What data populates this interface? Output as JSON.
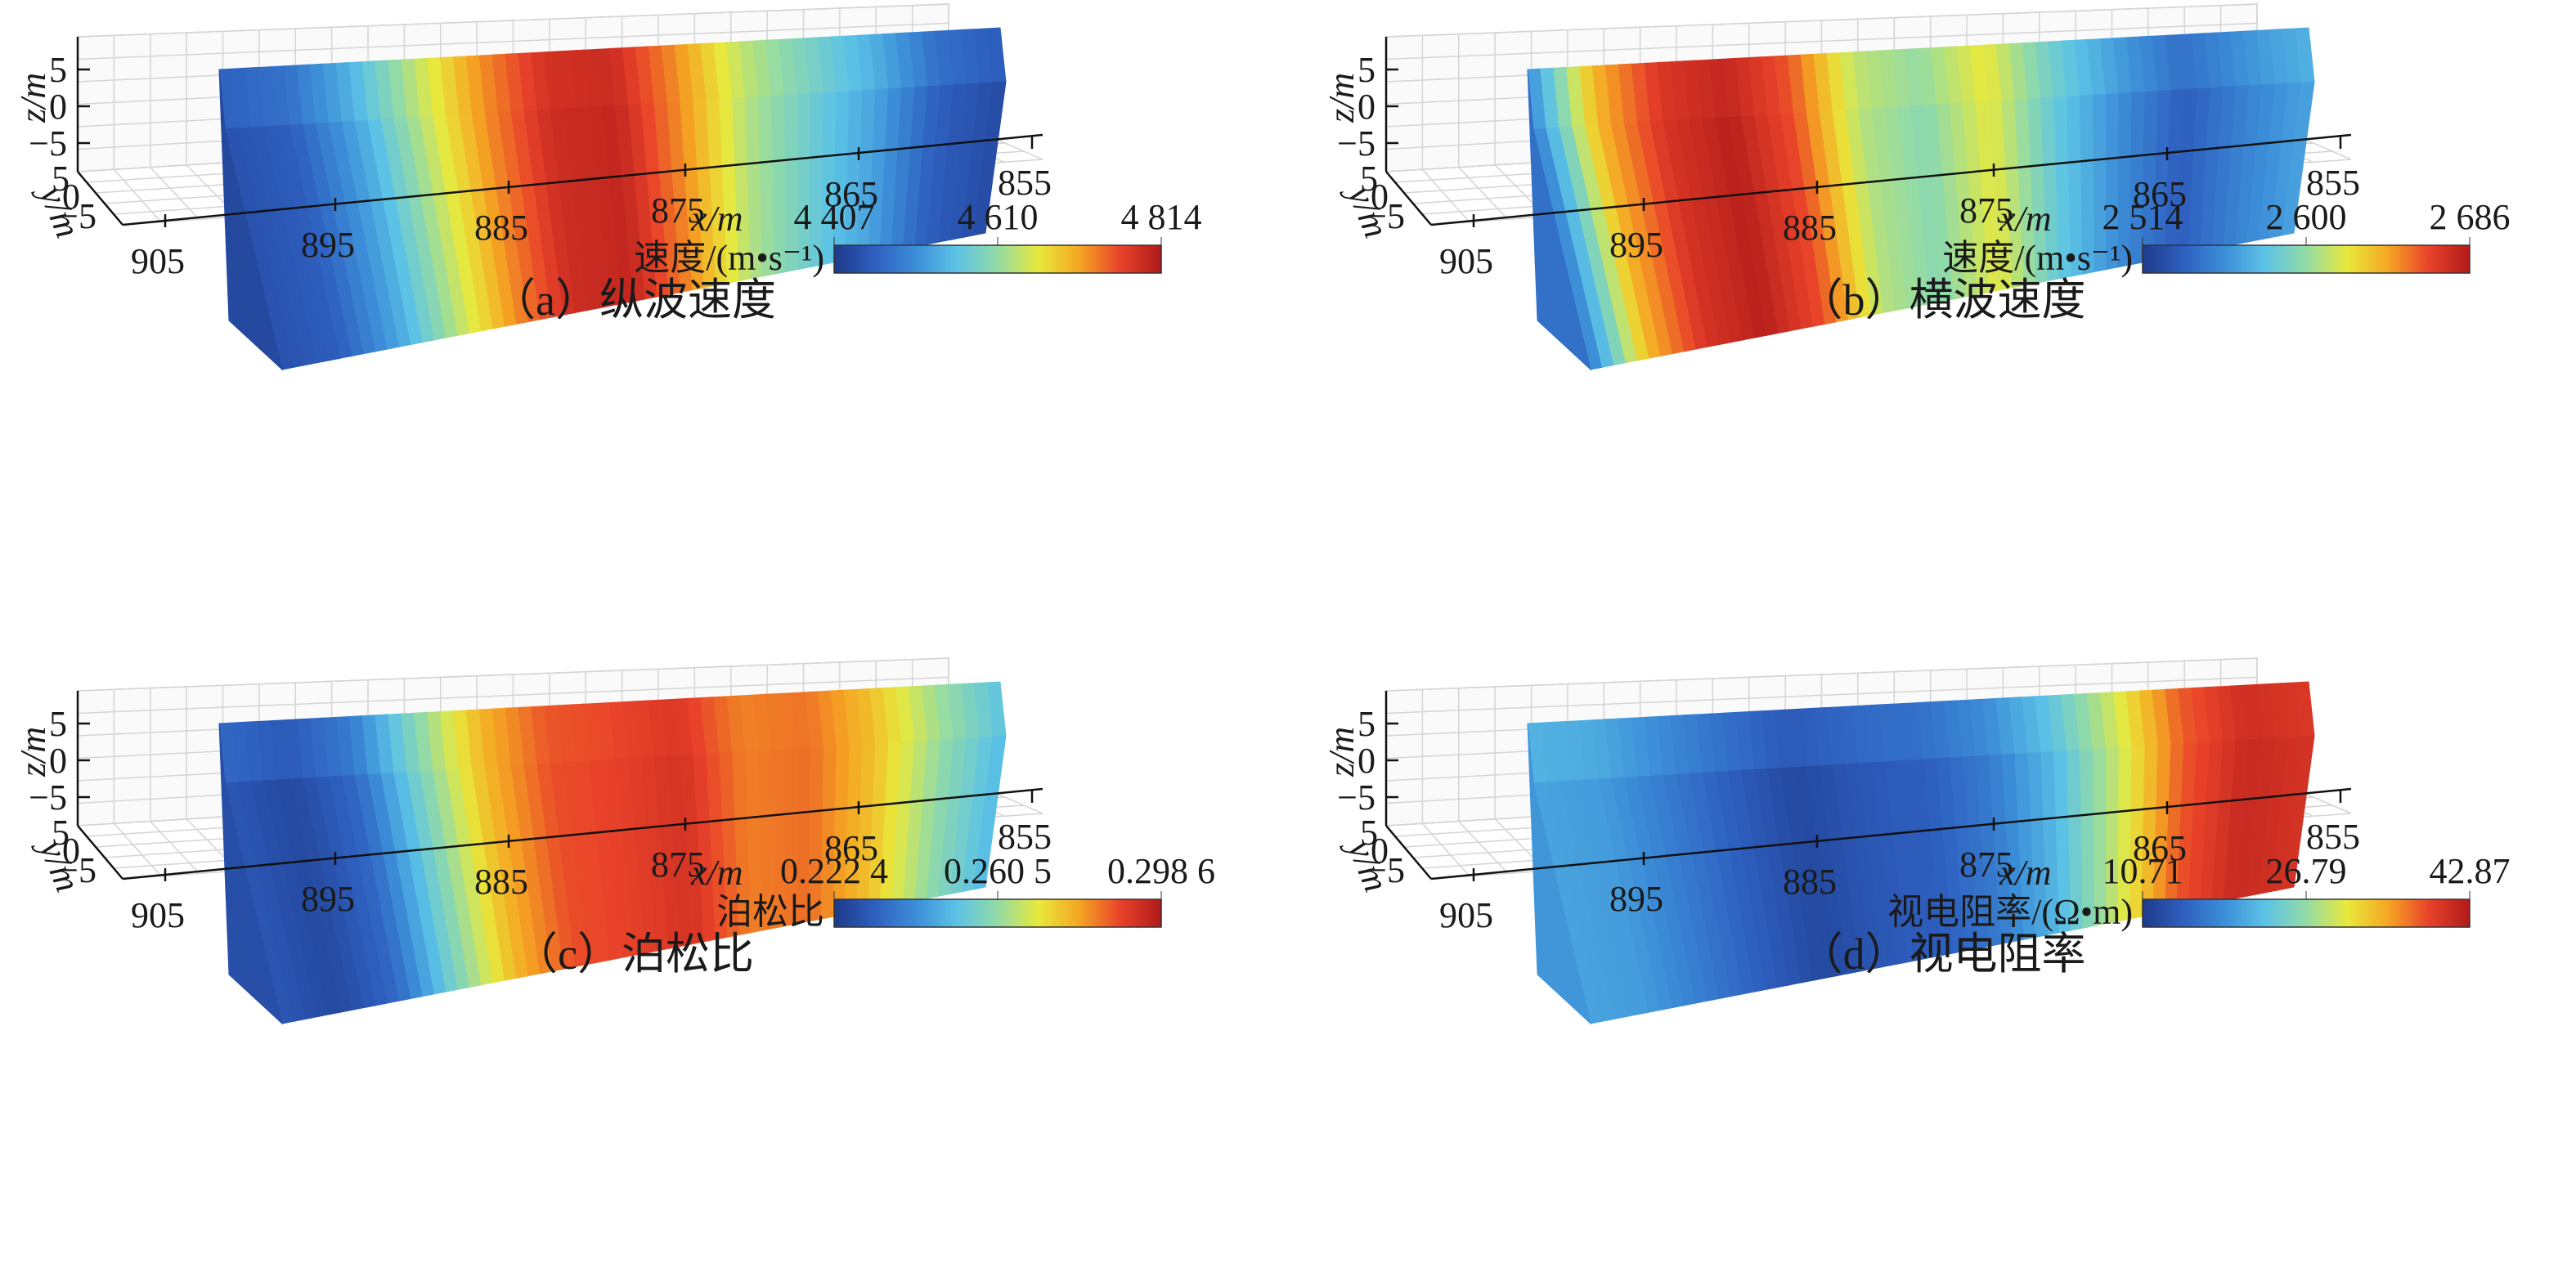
{
  "colormap": [
    "#1e3a8a",
    "#2e5fbf",
    "#3c8ed8",
    "#5cc3e6",
    "#93dba6",
    "#e8e93c",
    "#f5a623",
    "#e8422a",
    "#b01a1a"
  ],
  "chart_data": [
    {
      "type": "heatmap",
      "caption": "（a）纵波速度",
      "x_label": "x/m",
      "y_label": "y/m",
      "z_label": "z/m",
      "x_ticks": [
        "905",
        "895",
        "885",
        "875",
        "865",
        "855"
      ],
      "y_ticks": [
        "5",
        "0",
        "−5"
      ],
      "z_ticks": [
        "5",
        "0",
        "−5"
      ],
      "x_range": [
        905,
        855
      ],
      "y_range": [
        -5,
        5
      ],
      "z_range": [
        -7,
        7
      ],
      "colorbar": {
        "label": "速度/(m•s⁻¹)",
        "ticks": [
          "4 407",
          "4 610",
          "4 814"
        ],
        "min": 4407,
        "max": 4814
      },
      "front_face_profile": [
        0.08,
        0.12,
        0.3,
        0.55,
        0.78,
        0.94,
        0.96,
        0.78,
        0.55,
        0.42,
        0.3,
        0.12,
        0.06
      ]
    },
    {
      "type": "heatmap",
      "caption": "（b）横波速度",
      "x_label": "x/m",
      "y_label": "y/m",
      "z_label": "z/m",
      "x_ticks": [
        "905",
        "895",
        "885",
        "875",
        "865",
        "855"
      ],
      "y_ticks": [
        "5",
        "0",
        "−5"
      ],
      "z_ticks": [
        "5",
        "0",
        "−5"
      ],
      "x_range": [
        905,
        855
      ],
      "y_range": [
        -5,
        5
      ],
      "z_range": [
        -7,
        7
      ],
      "colorbar": {
        "label": "速度/(m•s⁻¹)",
        "ticks": [
          "2 514",
          "2 600",
          "2 686"
        ],
        "min": 2514,
        "max": 2686
      },
      "front_face_profile": [
        0.2,
        0.72,
        0.92,
        0.98,
        0.86,
        0.55,
        0.48,
        0.62,
        0.4,
        0.25,
        0.12,
        0.22,
        0.3
      ]
    },
    {
      "type": "heatmap",
      "caption": "（c）泊松比",
      "x_label": "x/m",
      "y_label": "y/m",
      "z_label": "z/m",
      "x_ticks": [
        "905",
        "895",
        "885",
        "875",
        "865",
        "855"
      ],
      "y_ticks": [
        "5",
        "0",
        "−5"
      ],
      "z_ticks": [
        "5",
        "0",
        "−5"
      ],
      "x_range": [
        905,
        855
      ],
      "y_range": [
        -5,
        5
      ],
      "z_range": [
        -7,
        7
      ],
      "colorbar": {
        "label": "泊松比",
        "ticks": [
          "0.222 4",
          "0.260 5",
          "0.298 6"
        ],
        "min": 0.2224,
        "max": 0.2986
      },
      "front_face_profile": [
        0.1,
        0.05,
        0.15,
        0.45,
        0.72,
        0.86,
        0.88,
        0.92,
        0.8,
        0.82,
        0.7,
        0.5,
        0.35
      ]
    },
    {
      "type": "heatmap",
      "caption": "（d）视电阻率",
      "x_label": "x/m",
      "y_label": "y/m",
      "z_label": "z/m",
      "x_ticks": [
        "905",
        "895",
        "885",
        "875",
        "865",
        "855"
      ],
      "y_ticks": [
        "5",
        "0",
        "−5"
      ],
      "z_ticks": [
        "5",
        "0",
        "−5"
      ],
      "x_range": [
        905,
        855
      ],
      "y_range": [
        -5,
        5
      ],
      "z_range": [
        -7,
        7
      ],
      "colorbar": {
        "label": "视电阻率/(Ω•m)",
        "ticks": [
          "10.71",
          "26.79",
          "42.87"
        ],
        "min": 10.71,
        "max": 42.87
      },
      "front_face_profile": [
        0.3,
        0.28,
        0.2,
        0.12,
        0.05,
        0.1,
        0.12,
        0.2,
        0.35,
        0.58,
        0.85,
        0.95,
        0.92
      ]
    }
  ]
}
